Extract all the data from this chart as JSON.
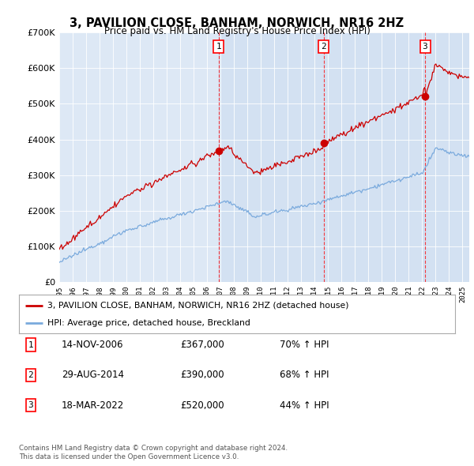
{
  "title": "3, PAVILION CLOSE, BANHAM, NORWICH, NR16 2HZ",
  "subtitle": "Price paid vs. HM Land Registry's House Price Index (HPI)",
  "property_label": "3, PAVILION CLOSE, BANHAM, NORWICH, NR16 2HZ (detached house)",
  "hpi_label": "HPI: Average price, detached house, Breckland",
  "footer1": "Contains HM Land Registry data © Crown copyright and database right 2024.",
  "footer2": "This data is licensed under the Open Government Licence v3.0.",
  "transactions": [
    {
      "num": 1,
      "date": "14-NOV-2006",
      "price": "£367,000",
      "hpi": "70% ↑ HPI",
      "year": 2006.87
    },
    {
      "num": 2,
      "date": "29-AUG-2014",
      "price": "£390,000",
      "hpi": "68% ↑ HPI",
      "year": 2014.66
    },
    {
      "num": 3,
      "date": "18-MAR-2022",
      "price": "£520,000",
      "hpi": "44% ↑ HPI",
      "year": 2022.21
    }
  ],
  "ylim_max": 700000,
  "xlim_start": 1995.0,
  "xlim_end": 2025.5,
  "plot_bg": "#dde8f5",
  "red_color": "#cc0000",
  "blue_color": "#7aaadd",
  "shade_color": "#ccddf0"
}
